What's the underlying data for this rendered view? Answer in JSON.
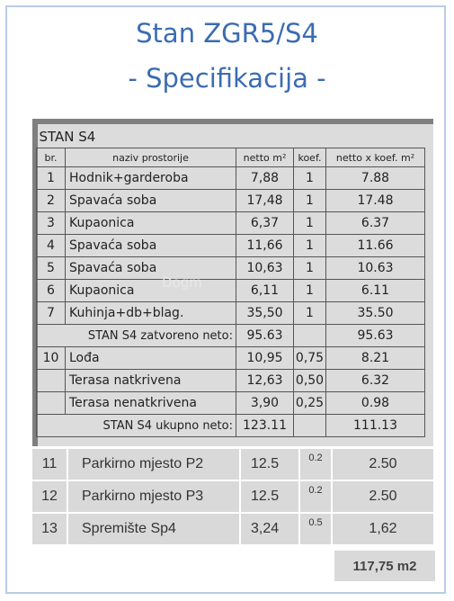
{
  "title_line1": "Stan ZGR5/S4",
  "title_line2": "- Specifikacija -",
  "watermark": "Dogm",
  "table": {
    "caption": "STAN S4",
    "headers": [
      "br.",
      "naziv prostorije",
      "netto m²",
      "koef.",
      "netto x koef. m²"
    ],
    "rows": [
      {
        "no": "1",
        "name": "Hodnik+garderoba",
        "net": "7,88",
        "koef": "1",
        "prod": "7.88"
      },
      {
        "no": "2",
        "name": "Spavaća soba",
        "net": "17,48",
        "koef": "1",
        "prod": "17.48"
      },
      {
        "no": "3",
        "name": "Kupaonica",
        "net": "6,37",
        "koef": "1",
        "prod": "6.37"
      },
      {
        "no": "4",
        "name": "Spavaća soba",
        "net": "11,66",
        "koef": "1",
        "prod": "11.66"
      },
      {
        "no": "5",
        "name": "Spavaća soba",
        "net": "10,63",
        "koef": "1",
        "prod": "10.63"
      },
      {
        "no": "6",
        "name": "Kupaonica",
        "net": "6,11",
        "koef": "1",
        "prod": "6.11"
      },
      {
        "no": "7",
        "name": "Kuhinja+db+blag.",
        "net": "35,50",
        "koef": "1",
        "prod": "35.50"
      }
    ],
    "closed_label": "STAN S4 zatvoreno neto:",
    "closed_net": "95.63",
    "closed_prod": "95.63",
    "rows2": [
      {
        "no": "10",
        "name": "Lođa",
        "net": "10,95",
        "koef": "0,75",
        "prod": "8.21"
      },
      {
        "no": "",
        "name": "Terasa natkrivena",
        "net": "12,63",
        "koef": "0,50",
        "prod": "6.32"
      },
      {
        "no": "",
        "name": "Terasa nenatkrivena",
        "net": "3,90",
        "koef": "0,25",
        "prod": "0.98"
      }
    ],
    "total_label": "STAN S4 ukupno neto:",
    "total_net": "123.11",
    "total_prod": "111.13"
  },
  "extras": [
    {
      "no": "11",
      "name": "Parkirno mjesto P2",
      "area": "12.5",
      "koef": "0.2",
      "value": "2.50"
    },
    {
      "no": "12",
      "name": "Parkirno mjesto P3",
      "area": "12.5",
      "koef": "0.2",
      "value": "2.50"
    },
    {
      "no": "13",
      "name": "Spremište Sp4",
      "area": "3,24",
      "koef": "0.5",
      "value": "1,62"
    }
  ],
  "grand_total": "117,75 m2"
}
